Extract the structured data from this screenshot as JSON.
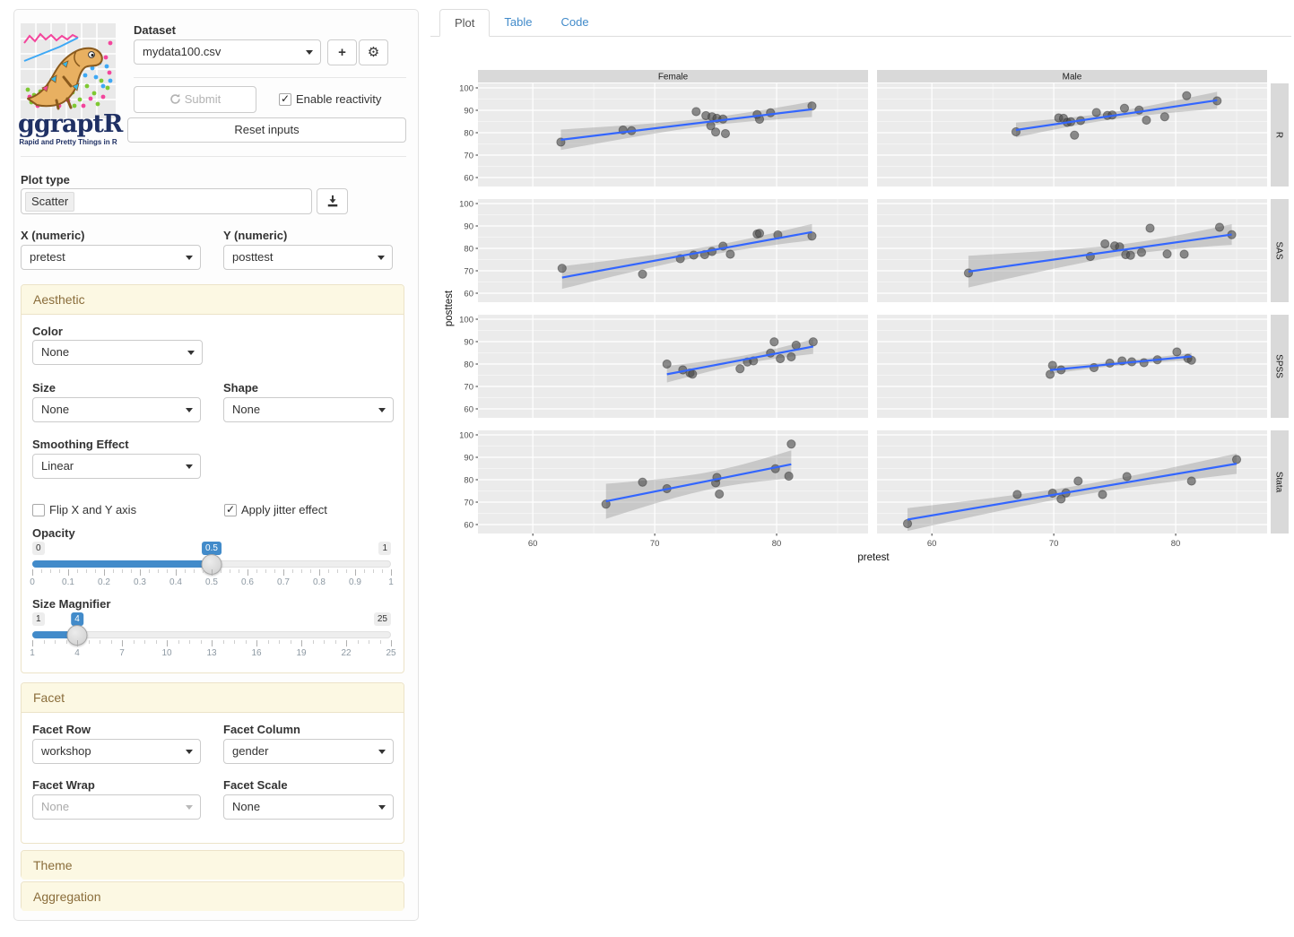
{
  "app": {
    "logo_title": "ggraptR",
    "logo_tagline": "Rapid and Pretty Things in R"
  },
  "icons": {
    "add": "+",
    "settings": "⚙"
  },
  "colors": {
    "accent": "#428bca",
    "panel_header_bg": "#fcf8e3",
    "panel_header_text": "#8a6d3b",
    "plot_panel_bg": "#ebebeb",
    "strip_bg": "#d9d9d9",
    "grid": "#ffffff",
    "point": "#4a4a4a",
    "smooth_line": "#3366ff",
    "band": "#999999"
  },
  "sidebar": {
    "dataset": {
      "label": "Dataset",
      "value": "mydata100.csv"
    },
    "submit": {
      "label": "Submit",
      "reset_label": "Reset inputs"
    },
    "reactivity": {
      "label": "Enable reactivity",
      "checked": true
    },
    "plot_type": {
      "label": "Plot type",
      "value": "Scatter"
    },
    "x_field": {
      "label": "X (numeric)",
      "value": "pretest"
    },
    "y_field": {
      "label": "Y (numeric)",
      "value": "posttest"
    },
    "aesthetic": {
      "title": "Aesthetic",
      "color": {
        "label": "Color",
        "value": "None"
      },
      "size": {
        "label": "Size",
        "value": "None"
      },
      "shape": {
        "label": "Shape",
        "value": "None"
      },
      "smoothing": {
        "label": "Smoothing Effect",
        "value": "Linear"
      },
      "flip": {
        "label": "Flip X and Y axis",
        "checked": false
      },
      "jitter": {
        "label": "Apply jitter effect",
        "checked": true
      },
      "opacity": {
        "label": "Opacity",
        "min": 0,
        "max": 1,
        "value": 0.5,
        "ticks": [
          0,
          0.1,
          0.2,
          0.3,
          0.4,
          0.5,
          0.6,
          0.7,
          0.8,
          0.9,
          1
        ]
      },
      "magnifier": {
        "label": "Size Magnifier",
        "min": 1,
        "max": 25,
        "value": 4,
        "ticks": [
          1,
          4,
          7,
          10,
          13,
          16,
          19,
          22,
          25
        ]
      }
    },
    "facet": {
      "title": "Facet",
      "row": {
        "label": "Facet Row",
        "value": "workshop"
      },
      "column": {
        "label": "Facet Column",
        "value": "gender"
      },
      "wrap": {
        "label": "Facet Wrap",
        "value": "None"
      },
      "scale": {
        "label": "Facet Scale",
        "value": "None"
      }
    },
    "theme_title": "Theme",
    "aggregation_title": "Aggregation"
  },
  "main": {
    "tabs": [
      {
        "label": "Plot",
        "active": true
      },
      {
        "label": "Table",
        "active": false
      },
      {
        "label": "Code",
        "active": false
      }
    ]
  },
  "chart_data": {
    "type": "scatter",
    "xlabel": "pretest",
    "ylabel": "posttest",
    "facet_cols": [
      "Female",
      "Male"
    ],
    "facet_rows": [
      "R",
      "SAS",
      "SPSS",
      "Stata"
    ],
    "facet_row_var": "workshop",
    "facet_col_var": "gender",
    "smoother": "Linear with 95% confidence band",
    "xlim": [
      55.5,
      87.5
    ],
    "ylim": [
      56,
      102
    ],
    "x_ticks": [
      60,
      70,
      80
    ],
    "y_ticks": [
      100,
      90,
      80,
      70,
      60
    ],
    "minor_x": [
      65,
      75,
      85
    ],
    "minor_y": [
      65,
      75,
      85,
      95
    ],
    "grid": true,
    "panels": [
      {
        "row": "R",
        "col": "Female",
        "points": [
          [
            62.3,
            75.8
          ],
          [
            67.4,
            81.2
          ],
          [
            68.1,
            80.9
          ],
          [
            73.4,
            89.4
          ],
          [
            74.2,
            87.6
          ],
          [
            74.7,
            87.1
          ],
          [
            75.1,
            86.4
          ],
          [
            75.6,
            86.1
          ],
          [
            74.6,
            83.1
          ],
          [
            75.0,
            80.3
          ],
          [
            75.8,
            79.6
          ],
          [
            78.4,
            88.1
          ],
          [
            78.6,
            86.0
          ],
          [
            79.5,
            88.9
          ],
          [
            82.9,
            91.9
          ]
        ]
      },
      {
        "row": "R",
        "col": "Male",
        "points": [
          [
            66.9,
            80.4
          ],
          [
            70.4,
            86.6
          ],
          [
            70.8,
            86.4
          ],
          [
            71.1,
            84.6
          ],
          [
            71.4,
            84.9
          ],
          [
            71.7,
            78.9
          ],
          [
            72.2,
            85.4
          ],
          [
            73.5,
            89.0
          ],
          [
            74.4,
            87.7
          ],
          [
            74.8,
            87.9
          ],
          [
            75.8,
            90.9
          ],
          [
            77.0,
            90.1
          ],
          [
            77.6,
            85.6
          ],
          [
            79.1,
            87.1
          ],
          [
            80.9,
            96.5
          ],
          [
            83.4,
            94.2
          ]
        ]
      },
      {
        "row": "SAS",
        "col": "Female",
        "points": [
          [
            62.4,
            71.1
          ],
          [
            69.0,
            68.5
          ],
          [
            72.1,
            75.4
          ],
          [
            73.2,
            77.0
          ],
          [
            74.1,
            77.2
          ],
          [
            74.7,
            78.6
          ],
          [
            75.6,
            81.0
          ],
          [
            76.2,
            77.4
          ],
          [
            78.4,
            86.4
          ],
          [
            78.6,
            86.7
          ],
          [
            80.1,
            86.0
          ],
          [
            82.9,
            85.5
          ]
        ]
      },
      {
        "row": "SAS",
        "col": "Male",
        "points": [
          [
            63.0,
            69.0
          ],
          [
            73.0,
            76.4
          ],
          [
            74.2,
            82.0
          ],
          [
            75.0,
            81.1
          ],
          [
            75.4,
            80.7
          ],
          [
            75.9,
            77.2
          ],
          [
            76.3,
            76.9
          ],
          [
            77.2,
            78.2
          ],
          [
            77.9,
            89.0
          ],
          [
            79.3,
            77.5
          ],
          [
            80.7,
            77.4
          ],
          [
            83.6,
            89.4
          ],
          [
            84.6,
            86.1
          ]
        ]
      },
      {
        "row": "SPSS",
        "col": "Female",
        "points": [
          [
            71.0,
            80.0
          ],
          [
            72.3,
            77.4
          ],
          [
            72.9,
            76.0
          ],
          [
            73.1,
            75.5
          ],
          [
            77.0,
            77.9
          ],
          [
            77.6,
            80.9
          ],
          [
            78.1,
            81.4
          ],
          [
            79.5,
            84.9
          ],
          [
            79.8,
            89.9
          ],
          [
            80.3,
            82.4
          ],
          [
            81.2,
            83.2
          ],
          [
            81.6,
            88.4
          ],
          [
            83.0,
            89.9
          ]
        ]
      },
      {
        "row": "SPSS",
        "col": "Male",
        "points": [
          [
            69.7,
            75.4
          ],
          [
            69.9,
            79.4
          ],
          [
            70.6,
            77.4
          ],
          [
            73.3,
            78.4
          ],
          [
            74.6,
            80.4
          ],
          [
            75.6,
            81.4
          ],
          [
            76.4,
            81.0
          ],
          [
            77.4,
            80.6
          ],
          [
            78.5,
            81.9
          ],
          [
            80.1,
            85.4
          ],
          [
            81.0,
            82.5
          ],
          [
            81.3,
            81.7
          ]
        ]
      },
      {
        "row": "Stata",
        "col": "Female",
        "points": [
          [
            66.0,
            69.1
          ],
          [
            69.0,
            78.9
          ],
          [
            71.0,
            76.0
          ],
          [
            75.0,
            78.6
          ],
          [
            75.1,
            81.0
          ],
          [
            75.3,
            73.6
          ],
          [
            79.9,
            84.9
          ],
          [
            81.0,
            81.6
          ],
          [
            81.2,
            95.9
          ]
        ]
      },
      {
        "row": "Stata",
        "col": "Male",
        "points": [
          [
            58.0,
            60.4
          ],
          [
            67.0,
            73.4
          ],
          [
            69.9,
            74.0
          ],
          [
            70.6,
            71.4
          ],
          [
            71.0,
            74.1
          ],
          [
            72.0,
            79.4
          ],
          [
            74.0,
            73.4
          ],
          [
            76.0,
            81.4
          ],
          [
            81.3,
            79.4
          ],
          [
            85.0,
            89.0
          ]
        ]
      }
    ]
  }
}
